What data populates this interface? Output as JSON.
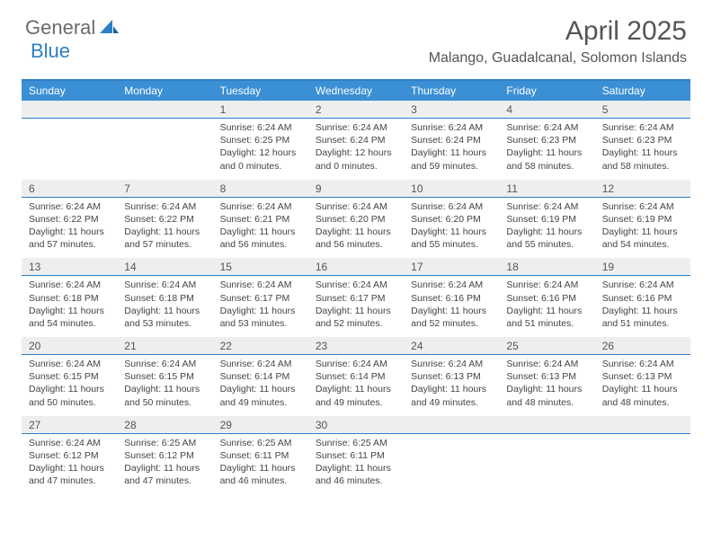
{
  "logo": {
    "part1": "General",
    "part2": "Blue"
  },
  "title": "April 2025",
  "location": "Malango, Guadalcanal, Solomon Islands",
  "colors": {
    "header_bar": "#3b8fd4",
    "accent_line": "#2d7fc4",
    "daynum_bg": "#eeeeee",
    "text": "#444444",
    "title_text": "#555555"
  },
  "dow": [
    "Sunday",
    "Monday",
    "Tuesday",
    "Wednesday",
    "Thursday",
    "Friday",
    "Saturday"
  ],
  "weeks": [
    [
      null,
      null,
      {
        "n": "1",
        "sr": "Sunrise: 6:24 AM",
        "ss": "Sunset: 6:25 PM",
        "dl": "Daylight: 12 hours and 0 minutes."
      },
      {
        "n": "2",
        "sr": "Sunrise: 6:24 AM",
        "ss": "Sunset: 6:24 PM",
        "dl": "Daylight: 12 hours and 0 minutes."
      },
      {
        "n": "3",
        "sr": "Sunrise: 6:24 AM",
        "ss": "Sunset: 6:24 PM",
        "dl": "Daylight: 11 hours and 59 minutes."
      },
      {
        "n": "4",
        "sr": "Sunrise: 6:24 AM",
        "ss": "Sunset: 6:23 PM",
        "dl": "Daylight: 11 hours and 58 minutes."
      },
      {
        "n": "5",
        "sr": "Sunrise: 6:24 AM",
        "ss": "Sunset: 6:23 PM",
        "dl": "Daylight: 11 hours and 58 minutes."
      }
    ],
    [
      {
        "n": "6",
        "sr": "Sunrise: 6:24 AM",
        "ss": "Sunset: 6:22 PM",
        "dl": "Daylight: 11 hours and 57 minutes."
      },
      {
        "n": "7",
        "sr": "Sunrise: 6:24 AM",
        "ss": "Sunset: 6:22 PM",
        "dl": "Daylight: 11 hours and 57 minutes."
      },
      {
        "n": "8",
        "sr": "Sunrise: 6:24 AM",
        "ss": "Sunset: 6:21 PM",
        "dl": "Daylight: 11 hours and 56 minutes."
      },
      {
        "n": "9",
        "sr": "Sunrise: 6:24 AM",
        "ss": "Sunset: 6:20 PM",
        "dl": "Daylight: 11 hours and 56 minutes."
      },
      {
        "n": "10",
        "sr": "Sunrise: 6:24 AM",
        "ss": "Sunset: 6:20 PM",
        "dl": "Daylight: 11 hours and 55 minutes."
      },
      {
        "n": "11",
        "sr": "Sunrise: 6:24 AM",
        "ss": "Sunset: 6:19 PM",
        "dl": "Daylight: 11 hours and 55 minutes."
      },
      {
        "n": "12",
        "sr": "Sunrise: 6:24 AM",
        "ss": "Sunset: 6:19 PM",
        "dl": "Daylight: 11 hours and 54 minutes."
      }
    ],
    [
      {
        "n": "13",
        "sr": "Sunrise: 6:24 AM",
        "ss": "Sunset: 6:18 PM",
        "dl": "Daylight: 11 hours and 54 minutes."
      },
      {
        "n": "14",
        "sr": "Sunrise: 6:24 AM",
        "ss": "Sunset: 6:18 PM",
        "dl": "Daylight: 11 hours and 53 minutes."
      },
      {
        "n": "15",
        "sr": "Sunrise: 6:24 AM",
        "ss": "Sunset: 6:17 PM",
        "dl": "Daylight: 11 hours and 53 minutes."
      },
      {
        "n": "16",
        "sr": "Sunrise: 6:24 AM",
        "ss": "Sunset: 6:17 PM",
        "dl": "Daylight: 11 hours and 52 minutes."
      },
      {
        "n": "17",
        "sr": "Sunrise: 6:24 AM",
        "ss": "Sunset: 6:16 PM",
        "dl": "Daylight: 11 hours and 52 minutes."
      },
      {
        "n": "18",
        "sr": "Sunrise: 6:24 AM",
        "ss": "Sunset: 6:16 PM",
        "dl": "Daylight: 11 hours and 51 minutes."
      },
      {
        "n": "19",
        "sr": "Sunrise: 6:24 AM",
        "ss": "Sunset: 6:16 PM",
        "dl": "Daylight: 11 hours and 51 minutes."
      }
    ],
    [
      {
        "n": "20",
        "sr": "Sunrise: 6:24 AM",
        "ss": "Sunset: 6:15 PM",
        "dl": "Daylight: 11 hours and 50 minutes."
      },
      {
        "n": "21",
        "sr": "Sunrise: 6:24 AM",
        "ss": "Sunset: 6:15 PM",
        "dl": "Daylight: 11 hours and 50 minutes."
      },
      {
        "n": "22",
        "sr": "Sunrise: 6:24 AM",
        "ss": "Sunset: 6:14 PM",
        "dl": "Daylight: 11 hours and 49 minutes."
      },
      {
        "n": "23",
        "sr": "Sunrise: 6:24 AM",
        "ss": "Sunset: 6:14 PM",
        "dl": "Daylight: 11 hours and 49 minutes."
      },
      {
        "n": "24",
        "sr": "Sunrise: 6:24 AM",
        "ss": "Sunset: 6:13 PM",
        "dl": "Daylight: 11 hours and 49 minutes."
      },
      {
        "n": "25",
        "sr": "Sunrise: 6:24 AM",
        "ss": "Sunset: 6:13 PM",
        "dl": "Daylight: 11 hours and 48 minutes."
      },
      {
        "n": "26",
        "sr": "Sunrise: 6:24 AM",
        "ss": "Sunset: 6:13 PM",
        "dl": "Daylight: 11 hours and 48 minutes."
      }
    ],
    [
      {
        "n": "27",
        "sr": "Sunrise: 6:24 AM",
        "ss": "Sunset: 6:12 PM",
        "dl": "Daylight: 11 hours and 47 minutes."
      },
      {
        "n": "28",
        "sr": "Sunrise: 6:25 AM",
        "ss": "Sunset: 6:12 PM",
        "dl": "Daylight: 11 hours and 47 minutes."
      },
      {
        "n": "29",
        "sr": "Sunrise: 6:25 AM",
        "ss": "Sunset: 6:11 PM",
        "dl": "Daylight: 11 hours and 46 minutes."
      },
      {
        "n": "30",
        "sr": "Sunrise: 6:25 AM",
        "ss": "Sunset: 6:11 PM",
        "dl": "Daylight: 11 hours and 46 minutes."
      },
      null,
      null,
      null
    ]
  ]
}
